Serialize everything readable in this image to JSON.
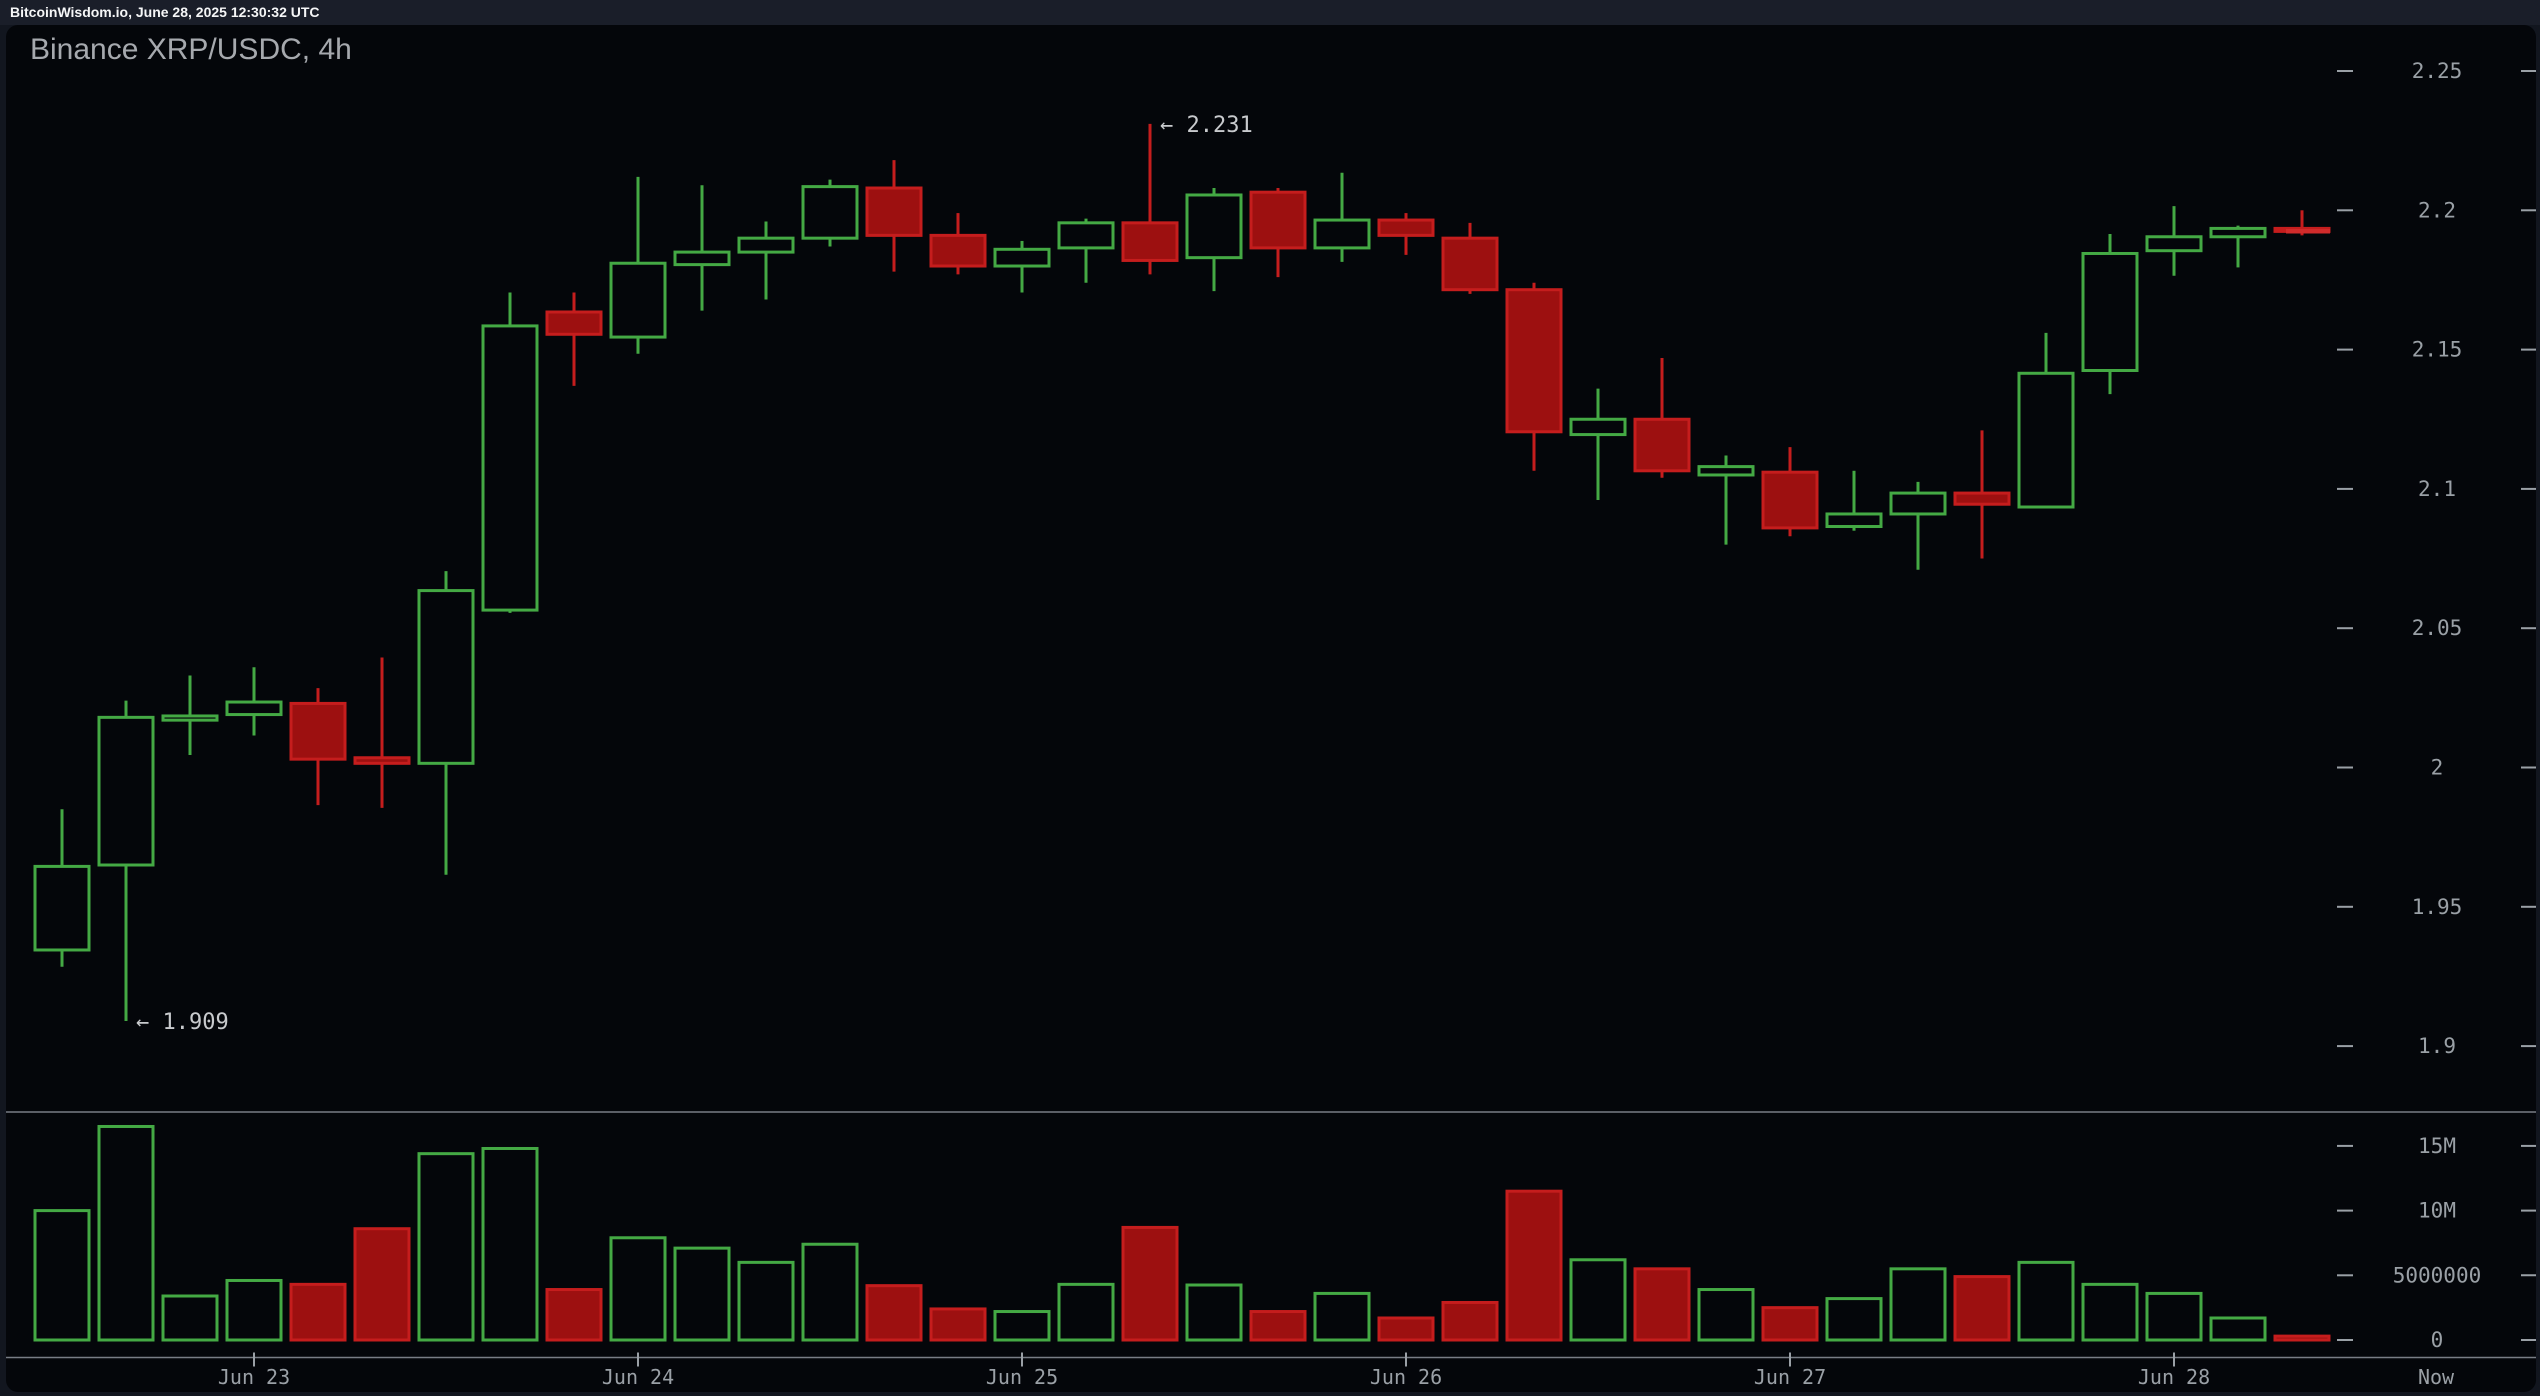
{
  "header": {
    "info_bar": "BitcoinWisdom.io, June 28, 2025 12:30:32 UTC"
  },
  "chart": {
    "title": "Binance XRP/USDC, 4h"
  },
  "colors": {
    "up": "#44a944",
    "down_stroke": "#c51d1d",
    "down_fill": "#9d1010",
    "axis_text": "#9aa0a6",
    "frame_line": "#787d85",
    "annotation_text": "#c8cacd",
    "last_price_tick": "#d12b2b",
    "panel_bg": "#04060a"
  },
  "chart_data": {
    "type": "candlestick",
    "title": "Binance XRP/USDC, 4h",
    "exchange": "Binance",
    "pair": "XRP/USDC",
    "interval": "4h",
    "legend_position": "none",
    "grid": false,
    "price_axis": {
      "range": [
        1.88,
        2.27
      ],
      "ticks": [
        {
          "label": "2.25",
          "value": 2.25
        },
        {
          "label": "2.2",
          "value": 2.2
        },
        {
          "label": "2.15",
          "value": 2.15
        },
        {
          "label": "2.1",
          "value": 2.1
        },
        {
          "label": "2.05",
          "value": 2.05
        },
        {
          "label": "2",
          "value": 2.0
        },
        {
          "label": "1.95",
          "value": 1.95
        },
        {
          "label": "1.9",
          "value": 1.9
        }
      ]
    },
    "volume_axis": {
      "range_millions": [
        0,
        18
      ],
      "ticks": [
        {
          "label": "15M",
          "value_millions": 15
        },
        {
          "label": "10M",
          "value_millions": 10
        },
        {
          "label": "5000000",
          "value_millions": 5
        },
        {
          "label": "0",
          "value_millions": 0
        }
      ]
    },
    "x_axis": {
      "day_labels": [
        {
          "label": "Jun 23",
          "candle_index": 3
        },
        {
          "label": "Jun 24",
          "candle_index": 9
        },
        {
          "label": "Jun 25",
          "candle_index": 15
        },
        {
          "label": "Jun 26",
          "candle_index": 21
        },
        {
          "label": "Jun 27",
          "candle_index": 27
        },
        {
          "label": "Jun 28",
          "candle_index": 33
        }
      ],
      "now_label": "Now"
    },
    "annotations": [
      {
        "text": "← 2.231",
        "price": 2.231,
        "candle_index": 17
      },
      {
        "text": "← 1.909",
        "price": 1.909,
        "candle_index": 1
      }
    ],
    "last_price": 2.1925,
    "candle_columns": [
      "open",
      "high",
      "low",
      "close",
      "volume_millions"
    ],
    "candles": [
      [
        1.9345,
        1.985,
        1.9285,
        1.9645,
        10.0
      ],
      [
        1.965,
        2.024,
        1.909,
        2.018,
        16.5
      ],
      [
        2.017,
        2.033,
        2.0045,
        2.0185,
        3.4
      ],
      [
        2.019,
        2.036,
        2.0115,
        2.0235,
        4.6
      ],
      [
        2.023,
        2.0285,
        1.9865,
        2.003,
        4.3
      ],
      [
        2.0035,
        2.0395,
        1.9855,
        2.0015,
        8.6
      ],
      [
        2.0015,
        2.0705,
        1.9615,
        2.0635,
        14.4
      ],
      [
        2.0565,
        2.1705,
        2.0555,
        2.1585,
        14.8
      ],
      [
        2.1635,
        2.1705,
        2.137,
        2.1555,
        3.9
      ],
      [
        2.1545,
        2.212,
        2.1485,
        2.181,
        7.9
      ],
      [
        2.1805,
        2.209,
        2.164,
        2.185,
        7.1
      ],
      [
        2.185,
        2.196,
        2.168,
        2.19,
        6.0
      ],
      [
        2.19,
        2.211,
        2.187,
        2.2085,
        7.4
      ],
      [
        2.208,
        2.218,
        2.178,
        2.191,
        4.2
      ],
      [
        2.191,
        2.199,
        2.177,
        2.18,
        2.4
      ],
      [
        2.18,
        2.189,
        2.1705,
        2.186,
        2.2
      ],
      [
        2.1865,
        2.197,
        2.174,
        2.1955,
        4.3
      ],
      [
        2.1955,
        2.231,
        2.177,
        2.182,
        8.7
      ],
      [
        2.183,
        2.208,
        2.171,
        2.2055,
        4.25
      ],
      [
        2.2065,
        2.208,
        2.176,
        2.1865,
        2.2
      ],
      [
        2.1865,
        2.2135,
        2.1815,
        2.1965,
        3.6
      ],
      [
        2.1965,
        2.199,
        2.184,
        2.191,
        1.7
      ],
      [
        2.19,
        2.1955,
        2.17,
        2.1715,
        2.9
      ],
      [
        2.1715,
        2.174,
        2.1065,
        2.1205,
        11.5
      ],
      [
        2.1195,
        2.136,
        2.096,
        2.125,
        6.2
      ],
      [
        2.125,
        2.147,
        2.104,
        2.1065,
        5.5
      ],
      [
        2.105,
        2.112,
        2.08,
        2.108,
        3.9
      ],
      [
        2.106,
        2.115,
        2.083,
        2.086,
        2.5
      ],
      [
        2.0865,
        2.1065,
        2.085,
        2.091,
        3.2
      ],
      [
        2.091,
        2.1025,
        2.071,
        2.0985,
        5.5
      ],
      [
        2.0985,
        2.121,
        2.075,
        2.0945,
        4.9
      ],
      [
        2.0935,
        2.156,
        2.093,
        2.1415,
        6.0
      ],
      [
        2.1425,
        2.1915,
        2.134,
        2.1845,
        4.3
      ],
      [
        2.1855,
        2.2015,
        2.1765,
        2.1905,
        3.6
      ],
      [
        2.1905,
        2.1945,
        2.1795,
        2.1935,
        1.7
      ],
      [
        2.1935,
        2.2,
        2.191,
        2.1925,
        0.3
      ]
    ]
  }
}
